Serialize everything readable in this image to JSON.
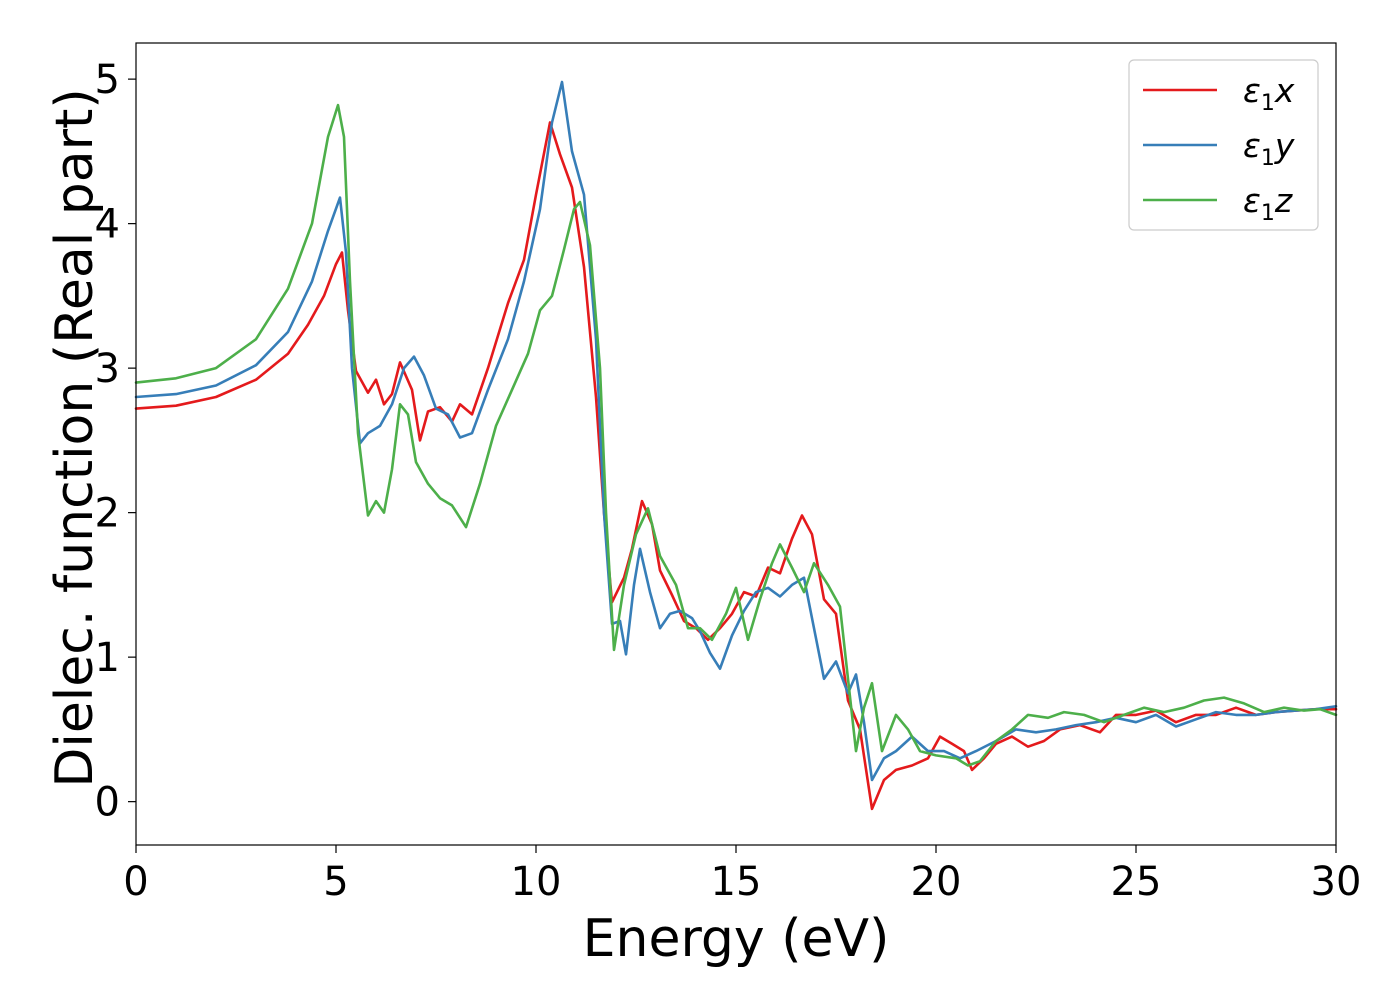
{
  "chart_data": {
    "type": "line",
    "xlabel": "Energy (eV)",
    "ylabel": "Dielec. function (Real part)",
    "xlim": [
      0,
      30
    ],
    "ylim": [
      -0.3,
      5.25
    ],
    "xticks": [
      0,
      5,
      10,
      15,
      20,
      25,
      30
    ],
    "xtick_labels": [
      "0",
      "5",
      "10",
      "15",
      "20",
      "25",
      "30"
    ],
    "yticks": [
      0,
      1,
      2,
      3,
      4,
      5
    ],
    "ytick_labels": [
      "0",
      "1",
      "2",
      "3",
      "4",
      "5"
    ],
    "grid": false,
    "legend_position": "top-right",
    "series": [
      {
        "name": "ε1x",
        "legend_base": "ε",
        "legend_sub": "1",
        "legend_var": "x",
        "color": "#e41a1c",
        "points": [
          [
            0,
            2.72
          ],
          [
            1,
            2.74
          ],
          [
            2,
            2.8
          ],
          [
            3,
            2.92
          ],
          [
            3.8,
            3.1
          ],
          [
            4.3,
            3.3
          ],
          [
            4.7,
            3.5
          ],
          [
            5.0,
            3.72
          ],
          [
            5.15,
            3.8
          ],
          [
            5.3,
            3.4
          ],
          [
            5.5,
            2.98
          ],
          [
            5.8,
            2.83
          ],
          [
            6.0,
            2.92
          ],
          [
            6.2,
            2.75
          ],
          [
            6.4,
            2.82
          ],
          [
            6.6,
            3.04
          ],
          [
            6.9,
            2.85
          ],
          [
            7.1,
            2.5
          ],
          [
            7.3,
            2.7
          ],
          [
            7.6,
            2.73
          ],
          [
            7.9,
            2.63
          ],
          [
            8.1,
            2.75
          ],
          [
            8.4,
            2.68
          ],
          [
            8.8,
            3.0
          ],
          [
            9.3,
            3.45
          ],
          [
            9.7,
            3.75
          ],
          [
            10.0,
            4.2
          ],
          [
            10.35,
            4.7
          ],
          [
            10.6,
            4.48
          ],
          [
            10.9,
            4.25
          ],
          [
            11.2,
            3.7
          ],
          [
            11.5,
            2.8
          ],
          [
            11.7,
            2.0
          ],
          [
            11.9,
            1.38
          ],
          [
            12.2,
            1.55
          ],
          [
            12.4,
            1.75
          ],
          [
            12.65,
            2.08
          ],
          [
            12.9,
            1.92
          ],
          [
            13.1,
            1.6
          ],
          [
            13.4,
            1.43
          ],
          [
            13.7,
            1.25
          ],
          [
            14.0,
            1.2
          ],
          [
            14.3,
            1.12
          ],
          [
            14.6,
            1.2
          ],
          [
            14.9,
            1.3
          ],
          [
            15.2,
            1.45
          ],
          [
            15.5,
            1.42
          ],
          [
            15.8,
            1.62
          ],
          [
            16.1,
            1.58
          ],
          [
            16.4,
            1.82
          ],
          [
            16.65,
            1.98
          ],
          [
            16.9,
            1.85
          ],
          [
            17.2,
            1.4
          ],
          [
            17.5,
            1.3
          ],
          [
            17.8,
            0.7
          ],
          [
            18.1,
            0.5
          ],
          [
            18.4,
            -0.05
          ],
          [
            18.7,
            0.15
          ],
          [
            19.0,
            0.22
          ],
          [
            19.4,
            0.25
          ],
          [
            19.8,
            0.3
          ],
          [
            20.1,
            0.45
          ],
          [
            20.4,
            0.4
          ],
          [
            20.7,
            0.35
          ],
          [
            20.9,
            0.22
          ],
          [
            21.2,
            0.3
          ],
          [
            21.5,
            0.4
          ],
          [
            21.9,
            0.45
          ],
          [
            22.3,
            0.38
          ],
          [
            22.7,
            0.42
          ],
          [
            23.1,
            0.5
          ],
          [
            23.6,
            0.53
          ],
          [
            24.1,
            0.48
          ],
          [
            24.5,
            0.6
          ],
          [
            25.0,
            0.6
          ],
          [
            25.5,
            0.63
          ],
          [
            26.0,
            0.55
          ],
          [
            26.5,
            0.6
          ],
          [
            27.0,
            0.6
          ],
          [
            27.5,
            0.65
          ],
          [
            28.0,
            0.6
          ],
          [
            28.5,
            0.62
          ],
          [
            29.0,
            0.63
          ],
          [
            29.5,
            0.64
          ],
          [
            30.0,
            0.64
          ]
        ]
      },
      {
        "name": "ε1y",
        "legend_base": "ε",
        "legend_sub": "1",
        "legend_var": "y",
        "color": "#377eb8",
        "points": [
          [
            0,
            2.8
          ],
          [
            1,
            2.82
          ],
          [
            2,
            2.88
          ],
          [
            3,
            3.02
          ],
          [
            3.8,
            3.25
          ],
          [
            4.4,
            3.6
          ],
          [
            4.8,
            3.95
          ],
          [
            5.1,
            4.18
          ],
          [
            5.25,
            3.8
          ],
          [
            5.4,
            3.0
          ],
          [
            5.6,
            2.48
          ],
          [
            5.8,
            2.55
          ],
          [
            6.1,
            2.6
          ],
          [
            6.4,
            2.75
          ],
          [
            6.7,
            3.0
          ],
          [
            6.95,
            3.08
          ],
          [
            7.2,
            2.95
          ],
          [
            7.5,
            2.72
          ],
          [
            7.8,
            2.68
          ],
          [
            8.1,
            2.52
          ],
          [
            8.4,
            2.55
          ],
          [
            8.8,
            2.85
          ],
          [
            9.3,
            3.2
          ],
          [
            9.7,
            3.6
          ],
          [
            10.1,
            4.1
          ],
          [
            10.4,
            4.7
          ],
          [
            10.65,
            4.98
          ],
          [
            10.9,
            4.5
          ],
          [
            11.2,
            4.2
          ],
          [
            11.5,
            3.2
          ],
          [
            11.7,
            2.0
          ],
          [
            11.9,
            1.23
          ],
          [
            12.1,
            1.25
          ],
          [
            12.25,
            1.02
          ],
          [
            12.45,
            1.5
          ],
          [
            12.6,
            1.75
          ],
          [
            12.85,
            1.45
          ],
          [
            13.1,
            1.2
          ],
          [
            13.35,
            1.3
          ],
          [
            13.6,
            1.32
          ],
          [
            13.9,
            1.27
          ],
          [
            14.1,
            1.18
          ],
          [
            14.35,
            1.03
          ],
          [
            14.6,
            0.92
          ],
          [
            14.9,
            1.15
          ],
          [
            15.2,
            1.32
          ],
          [
            15.5,
            1.45
          ],
          [
            15.8,
            1.48
          ],
          [
            16.1,
            1.42
          ],
          [
            16.4,
            1.5
          ],
          [
            16.7,
            1.55
          ],
          [
            16.95,
            1.2
          ],
          [
            17.2,
            0.85
          ],
          [
            17.5,
            0.97
          ],
          [
            17.8,
            0.75
          ],
          [
            18.0,
            0.88
          ],
          [
            18.2,
            0.55
          ],
          [
            18.4,
            0.15
          ],
          [
            18.7,
            0.3
          ],
          [
            19.0,
            0.35
          ],
          [
            19.4,
            0.45
          ],
          [
            19.8,
            0.35
          ],
          [
            20.2,
            0.35
          ],
          [
            20.6,
            0.3
          ],
          [
            21.0,
            0.35
          ],
          [
            21.5,
            0.42
          ],
          [
            22.0,
            0.5
          ],
          [
            22.5,
            0.48
          ],
          [
            23.0,
            0.5
          ],
          [
            23.5,
            0.53
          ],
          [
            24.0,
            0.55
          ],
          [
            24.5,
            0.58
          ],
          [
            25.0,
            0.55
          ],
          [
            25.5,
            0.6
          ],
          [
            26.0,
            0.52
          ],
          [
            26.5,
            0.57
          ],
          [
            27.0,
            0.62
          ],
          [
            27.5,
            0.6
          ],
          [
            28.0,
            0.6
          ],
          [
            28.5,
            0.62
          ],
          [
            29.0,
            0.63
          ],
          [
            29.5,
            0.64
          ],
          [
            30.0,
            0.66
          ]
        ]
      },
      {
        "name": "ε1z",
        "legend_base": "ε",
        "legend_sub": "1",
        "legend_var": "z",
        "color": "#4daf4a",
        "points": [
          [
            0,
            2.9
          ],
          [
            1,
            2.93
          ],
          [
            2,
            3.0
          ],
          [
            3,
            3.2
          ],
          [
            3.8,
            3.55
          ],
          [
            4.4,
            4.0
          ],
          [
            4.8,
            4.6
          ],
          [
            5.05,
            4.82
          ],
          [
            5.2,
            4.6
          ],
          [
            5.35,
            3.6
          ],
          [
            5.55,
            2.55
          ],
          [
            5.8,
            1.98
          ],
          [
            6.0,
            2.08
          ],
          [
            6.2,
            2.0
          ],
          [
            6.4,
            2.3
          ],
          [
            6.6,
            2.75
          ],
          [
            6.8,
            2.68
          ],
          [
            7.0,
            2.35
          ],
          [
            7.3,
            2.2
          ],
          [
            7.6,
            2.1
          ],
          [
            7.9,
            2.05
          ],
          [
            8.25,
            1.9
          ],
          [
            8.6,
            2.2
          ],
          [
            9.0,
            2.6
          ],
          [
            9.4,
            2.85
          ],
          [
            9.8,
            3.1
          ],
          [
            10.1,
            3.4
          ],
          [
            10.4,
            3.5
          ],
          [
            10.7,
            3.82
          ],
          [
            10.95,
            4.1
          ],
          [
            11.1,
            4.15
          ],
          [
            11.35,
            3.85
          ],
          [
            11.6,
            3.0
          ],
          [
            11.75,
            2.0
          ],
          [
            11.95,
            1.05
          ],
          [
            12.2,
            1.5
          ],
          [
            12.5,
            1.85
          ],
          [
            12.8,
            2.03
          ],
          [
            13.1,
            1.7
          ],
          [
            13.5,
            1.5
          ],
          [
            13.8,
            1.2
          ],
          [
            14.1,
            1.2
          ],
          [
            14.4,
            1.12
          ],
          [
            14.75,
            1.3
          ],
          [
            15.0,
            1.48
          ],
          [
            15.3,
            1.12
          ],
          [
            15.6,
            1.4
          ],
          [
            15.9,
            1.65
          ],
          [
            16.1,
            1.78
          ],
          [
            16.4,
            1.62
          ],
          [
            16.7,
            1.45
          ],
          [
            16.95,
            1.65
          ],
          [
            17.3,
            1.5
          ],
          [
            17.6,
            1.35
          ],
          [
            17.8,
            0.85
          ],
          [
            18.0,
            0.35
          ],
          [
            18.2,
            0.65
          ],
          [
            18.4,
            0.82
          ],
          [
            18.65,
            0.35
          ],
          [
            19.0,
            0.6
          ],
          [
            19.3,
            0.5
          ],
          [
            19.6,
            0.35
          ],
          [
            20.0,
            0.32
          ],
          [
            20.5,
            0.3
          ],
          [
            20.8,
            0.25
          ],
          [
            21.1,
            0.28
          ],
          [
            21.5,
            0.42
          ],
          [
            21.9,
            0.5
          ],
          [
            22.3,
            0.6
          ],
          [
            22.8,
            0.58
          ],
          [
            23.2,
            0.62
          ],
          [
            23.7,
            0.6
          ],
          [
            24.2,
            0.55
          ],
          [
            24.7,
            0.6
          ],
          [
            25.2,
            0.65
          ],
          [
            25.7,
            0.62
          ],
          [
            26.2,
            0.65
          ],
          [
            26.7,
            0.7
          ],
          [
            27.2,
            0.72
          ],
          [
            27.7,
            0.68
          ],
          [
            28.2,
            0.62
          ],
          [
            28.7,
            0.65
          ],
          [
            29.2,
            0.63
          ],
          [
            29.6,
            0.64
          ],
          [
            30.0,
            0.6
          ]
        ]
      }
    ]
  }
}
